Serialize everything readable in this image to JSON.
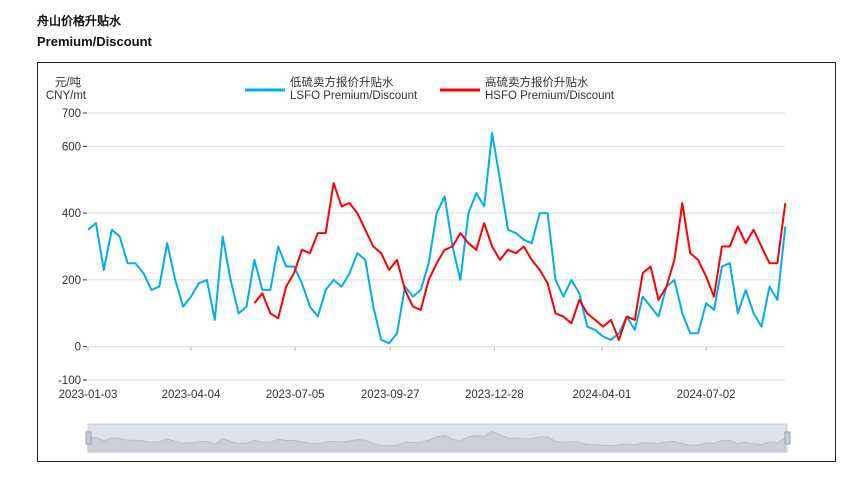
{
  "header": {
    "title": "舟山价格升贴水",
    "subtitle": "Premium/Discount"
  },
  "chart_data": {
    "type": "line",
    "ylabel_cn": "元/吨",
    "ylabel": "CNY/mt",
    "ylim": [
      -100,
      700
    ],
    "yticks": [
      -100,
      0,
      200,
      400,
      600,
      700
    ],
    "xticks": [
      "2023-01-03",
      "2023-04-04",
      "2023-07-05",
      "2023-09-27",
      "2023-12-28",
      "2024-04-01",
      "2024-07-02"
    ],
    "grid": true,
    "legend": "top-center",
    "x": [
      "2023-01-03",
      "2023-01-10",
      "2023-01-17",
      "2023-01-24",
      "2023-01-31",
      "2023-02-07",
      "2023-02-14",
      "2023-02-21",
      "2023-02-28",
      "2023-03-07",
      "2023-03-14",
      "2023-03-21",
      "2023-03-28",
      "2023-04-04",
      "2023-04-11",
      "2023-04-18",
      "2023-04-25",
      "2023-05-02",
      "2023-05-09",
      "2023-05-16",
      "2023-05-23",
      "2023-05-30",
      "2023-06-06",
      "2023-06-13",
      "2023-06-20",
      "2023-06-27",
      "2023-07-04",
      "2023-07-11",
      "2023-07-18",
      "2023-07-25",
      "2023-08-01",
      "2023-08-08",
      "2023-08-15",
      "2023-08-22",
      "2023-08-29",
      "2023-09-05",
      "2023-09-12",
      "2023-09-19",
      "2023-09-26",
      "2023-10-03",
      "2023-10-10",
      "2023-10-17",
      "2023-10-24",
      "2023-10-31",
      "2023-11-07",
      "2023-11-14",
      "2023-11-21",
      "2023-11-28",
      "2023-12-05",
      "2023-12-12",
      "2023-12-19",
      "2023-12-26",
      "2024-01-02",
      "2024-01-09",
      "2024-01-16",
      "2024-01-23",
      "2024-01-30",
      "2024-02-06",
      "2024-02-13",
      "2024-02-20",
      "2024-02-27",
      "2024-03-05",
      "2024-03-12",
      "2024-03-19",
      "2024-03-26",
      "2024-04-02",
      "2024-04-09",
      "2024-04-16",
      "2024-04-23",
      "2024-04-30",
      "2024-05-07",
      "2024-05-14",
      "2024-05-21",
      "2024-05-28",
      "2024-06-04",
      "2024-06-11",
      "2024-06-18",
      "2024-06-25",
      "2024-07-02",
      "2024-07-09",
      "2024-07-16",
      "2024-07-23",
      "2024-07-30",
      "2024-08-06",
      "2024-08-13",
      "2024-08-20",
      "2024-08-27",
      "2024-09-03",
      "2024-09-10"
    ],
    "series": [
      {
        "name_cn": "低硫卖方报价升贴水",
        "name": "LSFO Premium/Discount",
        "color": "#00aeef",
        "values": [
          350,
          370,
          230,
          350,
          330,
          250,
          250,
          220,
          170,
          180,
          310,
          200,
          120,
          150,
          190,
          200,
          80,
          330,
          200,
          100,
          120,
          260,
          170,
          170,
          300,
          240,
          240,
          190,
          120,
          90,
          170,
          200,
          180,
          220,
          280,
          260,
          120,
          20,
          10,
          40,
          180,
          150,
          170,
          250,
          400,
          450,
          300,
          200,
          400,
          460,
          420,
          640,
          500,
          350,
          340,
          320,
          310,
          400,
          400,
          200,
          150,
          200,
          160,
          60,
          50,
          30,
          20,
          40,
          90,
          50,
          150,
          120,
          90,
          180,
          200,
          100,
          40,
          40,
          130,
          110,
          240,
          250,
          100,
          170,
          100,
          60,
          180,
          140,
          360
        ]
      },
      {
        "name_cn": "高硫卖方报价升贴水",
        "name": "HSFO Premium/Discount",
        "color": "#ff0000",
        "values": [
          null,
          null,
          null,
          null,
          null,
          null,
          null,
          null,
          null,
          null,
          null,
          null,
          null,
          null,
          null,
          null,
          null,
          null,
          null,
          null,
          null,
          130,
          160,
          100,
          85,
          180,
          220,
          290,
          280,
          340,
          340,
          490,
          420,
          430,
          400,
          350,
          300,
          280,
          230,
          260,
          170,
          120,
          110,
          200,
          250,
          290,
          300,
          340,
          310,
          290,
          370,
          300,
          260,
          290,
          280,
          300,
          260,
          230,
          190,
          100,
          90,
          70,
          140,
          100,
          80,
          60,
          80,
          20,
          90,
          80,
          220,
          240,
          140,
          180,
          260,
          430,
          280,
          260,
          210,
          150,
          300,
          300,
          360,
          310,
          350,
          300,
          250,
          250,
          430
        ]
      }
    ]
  },
  "slider": {
    "range": [
      0,
      100
    ]
  }
}
